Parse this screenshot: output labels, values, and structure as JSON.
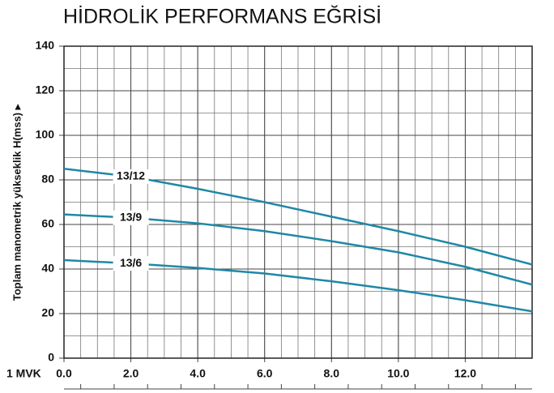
{
  "chart_data": {
    "type": "line",
    "title": "HİDROLİK PERFORMANS EĞRİSİ",
    "y_label": "Toplam manometrik yükseklik H(mss) ▸",
    "x_label": "1 MVK",
    "x": [
      0,
      2,
      4,
      6,
      8,
      10,
      12,
      14
    ],
    "series": [
      {
        "name": "13/12",
        "color": "#1f88a6",
        "values": [
          85,
          81.5,
          76,
          70,
          63.5,
          57,
          50,
          42
        ]
      },
      {
        "name": "13/9",
        "color": "#1f88a6",
        "values": [
          64.5,
          63,
          60.5,
          57,
          52.5,
          47.5,
          41,
          33
        ]
      },
      {
        "name": "13/6",
        "color": "#1f88a6",
        "values": [
          44,
          42.5,
          40.5,
          38,
          34.5,
          30.5,
          26,
          21
        ]
      }
    ],
    "xlim": [
      0,
      14
    ],
    "ylim": [
      0,
      140
    ],
    "xticks": [
      {
        "value": 0,
        "label": "0.0"
      },
      {
        "value": 2,
        "label": "2.0"
      },
      {
        "value": 4,
        "label": "4.0"
      },
      {
        "value": 6,
        "label": "6.0"
      },
      {
        "value": 8,
        "label": "8.0"
      },
      {
        "value": 10,
        "label": "10.0"
      },
      {
        "value": 12,
        "label": "12.0"
      }
    ],
    "yticks": [
      0,
      20,
      40,
      60,
      80,
      100,
      120,
      140
    ],
    "grid": true
  }
}
